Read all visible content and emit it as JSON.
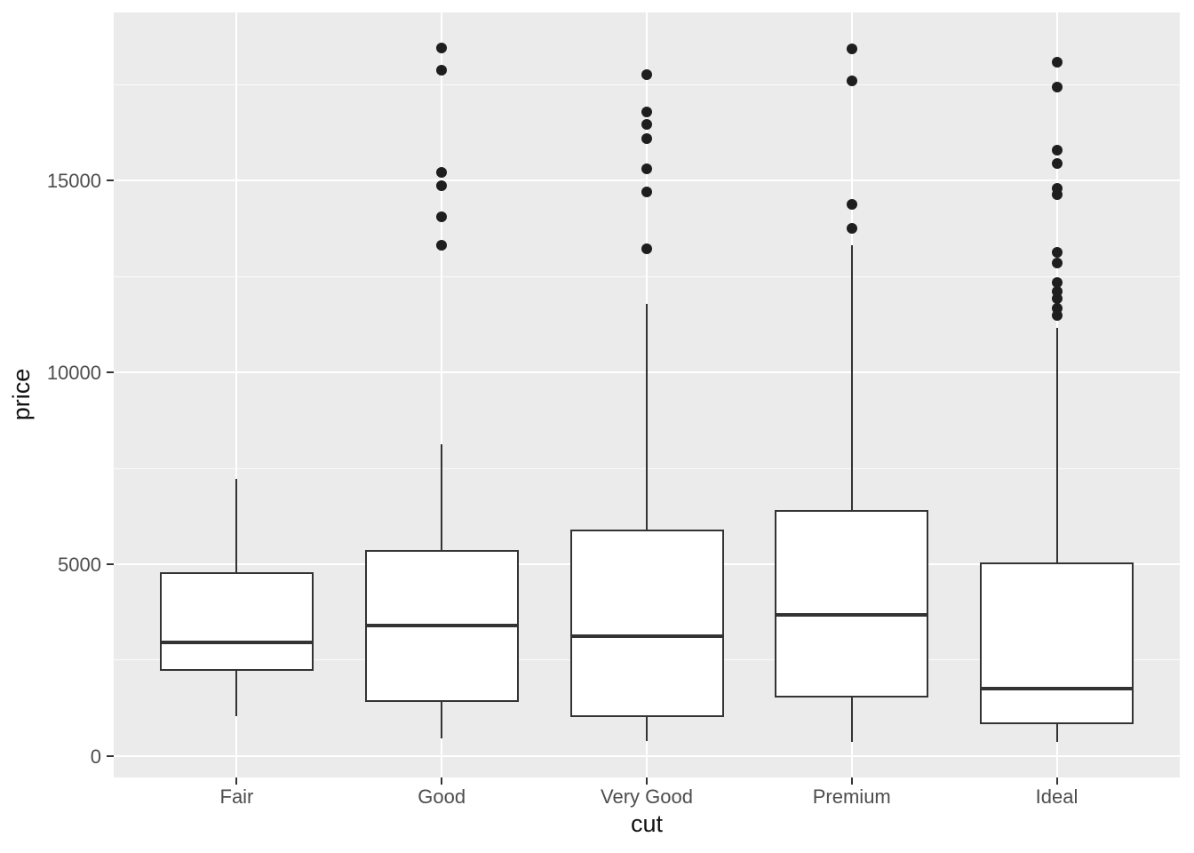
{
  "chart_data": {
    "type": "boxplot",
    "title": "",
    "xlabel": "cut",
    "ylabel": "price",
    "categories": [
      "Fair",
      "Good",
      "Very Good",
      "Premium",
      "Ideal"
    ],
    "series": [
      {
        "name": "Fair",
        "whisker_low": 1040,
        "q1": 2220,
        "median": 2960,
        "q3": 4795,
        "whisker_high": 7230,
        "outliers": []
      },
      {
        "name": "Good",
        "whisker_low": 460,
        "q1": 1410,
        "median": 3400,
        "q3": 5370,
        "whisker_high": 8130,
        "outliers": [
          13330,
          14060,
          14870,
          15230,
          17890,
          18460
        ]
      },
      {
        "name": "Very Good",
        "whisker_low": 395,
        "q1": 1020,
        "median": 3125,
        "q3": 5900,
        "whisker_high": 11790,
        "outliers": [
          13220,
          14720,
          15320,
          16090,
          16460,
          16800,
          17770
        ]
      },
      {
        "name": "Premium",
        "whisker_low": 370,
        "q1": 1530,
        "median": 3680,
        "q3": 6410,
        "whisker_high": 13330,
        "outliers": [
          13760,
          14380,
          17610,
          18440
        ]
      },
      {
        "name": "Ideal",
        "whisker_low": 355,
        "q1": 835,
        "median": 1760,
        "q3": 5050,
        "whisker_high": 11170,
        "outliers": [
          11490,
          11670,
          11940,
          12120,
          12350,
          12850,
          13140,
          14630,
          14800,
          15440,
          15800,
          17450,
          18100
        ]
      }
    ],
    "y_ticks": [
      0,
      5000,
      10000,
      15000
    ],
    "y_tick_labels": [
      "0",
      "5000",
      "10000",
      "15000"
    ],
    "y_minor_ticks": [
      2500,
      7500,
      12500,
      17500
    ],
    "ylim": [
      -560,
      19390
    ],
    "grid": true,
    "legend": "none",
    "box_width_fraction": 0.75,
    "category_padding": 0.6
  },
  "colors": {
    "panel_bg": "#EBEBEB",
    "grid_major": "#FFFFFF",
    "grid_minor": "#FFFFFF",
    "box_fill": "#FFFFFF",
    "box_stroke": "#333333",
    "point": "#1E1E1E",
    "axis_text": "#4D4D4D",
    "axis_title": "#111111",
    "tick_mark": "#333333"
  }
}
